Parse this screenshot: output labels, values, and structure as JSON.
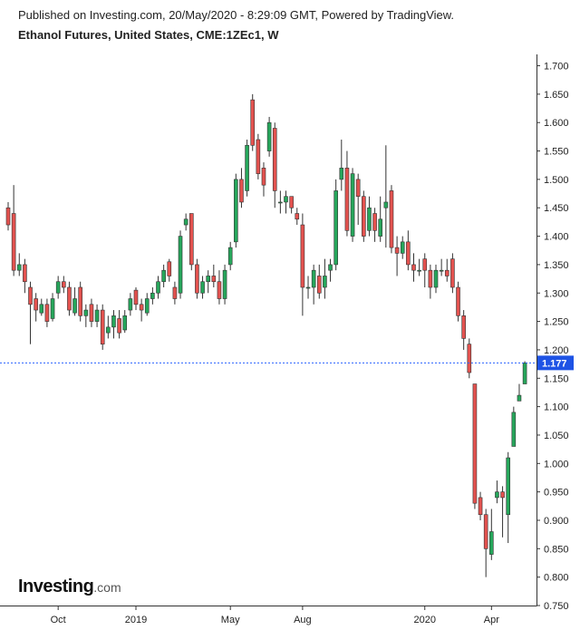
{
  "header": {
    "published": "Published on Investing.com, 20/May/2020 - 8:29:09 GMT, Powered by TradingView.",
    "title": "Ethanol Futures, United States, CME:1ZEc1, W"
  },
  "logo": {
    "name": "Investing",
    "suffix": ".com"
  },
  "colors": {
    "up": "#26a65b",
    "down": "#e3524f",
    "outline": "#333333",
    "price_line": "#2962ff",
    "price_label_bg": "#1e53e5"
  },
  "chart_data": {
    "type": "candlestick",
    "interval": "W",
    "ylim": [
      0.75,
      1.72
    ],
    "y_ticks": [
      "1.700",
      "1.650",
      "1.600",
      "1.550",
      "1.500",
      "1.450",
      "1.400",
      "1.350",
      "1.300",
      "1.250",
      "1.200",
      "1.150",
      "1.100",
      "1.050",
      "1.000",
      "0.950",
      "0.900",
      "0.850",
      "0.800",
      "0.750"
    ],
    "x_ticks": [
      {
        "label": "Oct",
        "index": 9
      },
      {
        "label": "2019",
        "index": 23
      },
      {
        "label": "May",
        "index": 40
      },
      {
        "label": "Aug",
        "index": 53
      },
      {
        "label": "2020",
        "index": 75
      },
      {
        "label": "Apr",
        "index": 87
      }
    ],
    "last_price": "1.177",
    "candles": [
      [
        1.45,
        1.42,
        1.46,
        1.41
      ],
      [
        1.44,
        1.34,
        1.49,
        1.33
      ],
      [
        1.34,
        1.35,
        1.37,
        1.33
      ],
      [
        1.35,
        1.32,
        1.36,
        1.3
      ],
      [
        1.31,
        1.28,
        1.32,
        1.21
      ],
      [
        1.29,
        1.27,
        1.3,
        1.25
      ],
      [
        1.265,
        1.28,
        1.29,
        1.26
      ],
      [
        1.28,
        1.25,
        1.29,
        1.24
      ],
      [
        1.255,
        1.29,
        1.3,
        1.25
      ],
      [
        1.3,
        1.32,
        1.33,
        1.29
      ],
      [
        1.32,
        1.31,
        1.33,
        1.3
      ],
      [
        1.31,
        1.27,
        1.32,
        1.26
      ],
      [
        1.265,
        1.29,
        1.31,
        1.26
      ],
      [
        1.31,
        1.26,
        1.32,
        1.25
      ],
      [
        1.26,
        1.27,
        1.28,
        1.24
      ],
      [
        1.28,
        1.25,
        1.29,
        1.24
      ],
      [
        1.25,
        1.27,
        1.28,
        1.24
      ],
      [
        1.27,
        1.21,
        1.28,
        1.2
      ],
      [
        1.23,
        1.24,
        1.26,
        1.22
      ],
      [
        1.24,
        1.26,
        1.27,
        1.22
      ],
      [
        1.255,
        1.23,
        1.27,
        1.22
      ],
      [
        1.235,
        1.26,
        1.27,
        1.23
      ],
      [
        1.27,
        1.29,
        1.3,
        1.26
      ],
      [
        1.305,
        1.28,
        1.31,
        1.27
      ],
      [
        1.28,
        1.27,
        1.29,
        1.25
      ],
      [
        1.265,
        1.29,
        1.3,
        1.26
      ],
      [
        1.29,
        1.3,
        1.31,
        1.28
      ],
      [
        1.3,
        1.32,
        1.33,
        1.29
      ],
      [
        1.32,
        1.34,
        1.35,
        1.31
      ],
      [
        1.355,
        1.33,
        1.36,
        1.32
      ],
      [
        1.31,
        1.29,
        1.32,
        1.28
      ],
      [
        1.3,
        1.4,
        1.41,
        1.29
      ],
      [
        1.42,
        1.43,
        1.44,
        1.41
      ],
      [
        1.44,
        1.35,
        1.44,
        1.34
      ],
      [
        1.35,
        1.3,
        1.36,
        1.29
      ],
      [
        1.3,
        1.32,
        1.33,
        1.29
      ],
      [
        1.32,
        1.33,
        1.34,
        1.3
      ],
      [
        1.33,
        1.32,
        1.35,
        1.31
      ],
      [
        1.32,
        1.29,
        1.34,
        1.28
      ],
      [
        1.29,
        1.34,
        1.35,
        1.28
      ],
      [
        1.35,
        1.38,
        1.39,
        1.34
      ],
      [
        1.39,
        1.5,
        1.51,
        1.38
      ],
      [
        1.5,
        1.46,
        1.52,
        1.45
      ],
      [
        1.48,
        1.56,
        1.57,
        1.47
      ],
      [
        1.64,
        1.56,
        1.65,
        1.55
      ],
      [
        1.57,
        1.51,
        1.58,
        1.5
      ],
      [
        1.52,
        1.49,
        1.53,
        1.47
      ],
      [
        1.55,
        1.6,
        1.61,
        1.54
      ],
      [
        1.59,
        1.48,
        1.6,
        1.45
      ],
      [
        1.46,
        1.46,
        1.48,
        1.44
      ],
      [
        1.46,
        1.47,
        1.48,
        1.44
      ],
      [
        1.47,
        1.45,
        1.47,
        1.44
      ],
      [
        1.44,
        1.43,
        1.45,
        1.42
      ],
      [
        1.42,
        1.31,
        1.44,
        1.26
      ],
      [
        1.31,
        1.31,
        1.33,
        1.29
      ],
      [
        1.31,
        1.34,
        1.35,
        1.28
      ],
      [
        1.33,
        1.3,
        1.35,
        1.29
      ],
      [
        1.31,
        1.33,
        1.36,
        1.29
      ],
      [
        1.34,
        1.35,
        1.36,
        1.32
      ],
      [
        1.35,
        1.48,
        1.5,
        1.34
      ],
      [
        1.5,
        1.52,
        1.57,
        1.48
      ],
      [
        1.52,
        1.41,
        1.55,
        1.4
      ],
      [
        1.4,
        1.51,
        1.52,
        1.39
      ],
      [
        1.5,
        1.47,
        1.51,
        1.42
      ],
      [
        1.47,
        1.4,
        1.48,
        1.39
      ],
      [
        1.41,
        1.45,
        1.47,
        1.4
      ],
      [
        1.44,
        1.41,
        1.45,
        1.39
      ],
      [
        1.4,
        1.43,
        1.47,
        1.39
      ],
      [
        1.45,
        1.46,
        1.56,
        1.38
      ],
      [
        1.48,
        1.38,
        1.49,
        1.37
      ],
      [
        1.38,
        1.37,
        1.4,
        1.33
      ],
      [
        1.37,
        1.39,
        1.4,
        1.36
      ],
      [
        1.39,
        1.35,
        1.41,
        1.34
      ],
      [
        1.35,
        1.34,
        1.37,
        1.32
      ],
      [
        1.34,
        1.34,
        1.36,
        1.33
      ],
      [
        1.36,
        1.34,
        1.37,
        1.31
      ],
      [
        1.34,
        1.31,
        1.35,
        1.29
      ],
      [
        1.31,
        1.34,
        1.35,
        1.3
      ],
      [
        1.34,
        1.34,
        1.36,
        1.33
      ],
      [
        1.34,
        1.33,
        1.36,
        1.32
      ],
      [
        1.36,
        1.31,
        1.37,
        1.3
      ],
      [
        1.31,
        1.26,
        1.32,
        1.25
      ],
      [
        1.26,
        1.22,
        1.27,
        1.2
      ],
      [
        1.21,
        1.16,
        1.22,
        1.15
      ],
      [
        1.14,
        0.93,
        1.14,
        0.92
      ],
      [
        0.94,
        0.91,
        0.95,
        0.9
      ],
      [
        0.91,
        0.85,
        0.92,
        0.8
      ],
      [
        0.84,
        0.88,
        0.92,
        0.83
      ],
      [
        0.94,
        0.95,
        0.97,
        0.93
      ],
      [
        0.95,
        0.94,
        0.96,
        0.87
      ],
      [
        0.91,
        1.01,
        1.02,
        0.86
      ],
      [
        1.03,
        1.09,
        1.1,
        1.03
      ],
      [
        1.11,
        1.12,
        1.14,
        1.11
      ],
      [
        1.14,
        1.177,
        1.18,
        1.14
      ]
    ]
  }
}
